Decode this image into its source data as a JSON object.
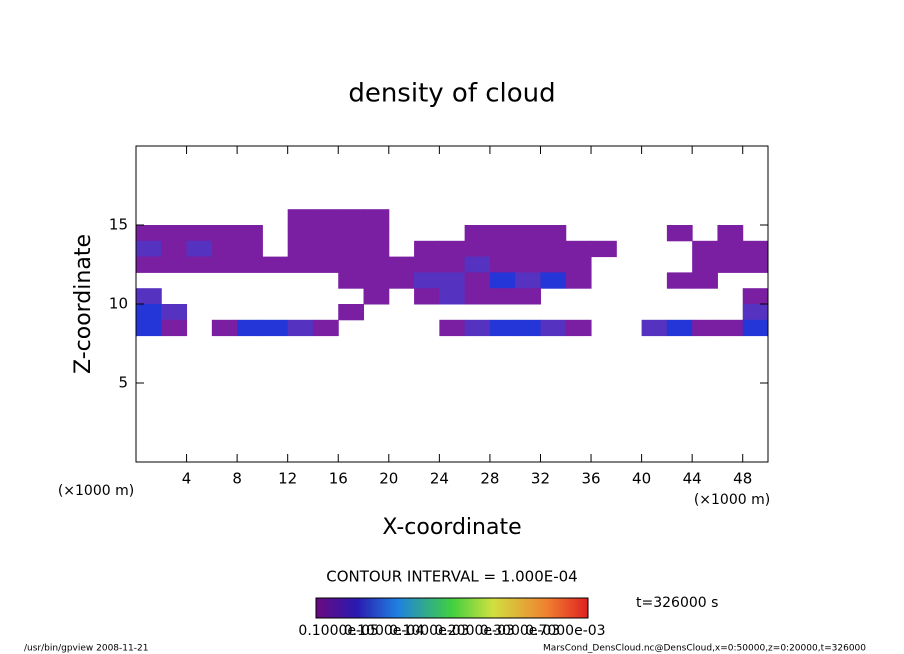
{
  "chart_data": {
    "type": "contour",
    "title": "density of cloud",
    "x_label": "X-coordinate",
    "y_label": "Z-coordinate",
    "x_unit": "(×1000 m)",
    "y_unit": "(×1000 m)",
    "xlim": [
      0,
      50
    ],
    "ylim": [
      0,
      20
    ],
    "xticks": [
      4,
      8,
      12,
      16,
      20,
      24,
      28,
      32,
      36,
      40,
      44,
      48
    ],
    "yticks": [
      5,
      10,
      15
    ],
    "x": [
      1,
      3,
      5,
      7,
      9,
      11,
      13,
      15,
      17,
      19,
      21,
      23,
      25,
      27,
      29,
      31,
      33,
      35,
      37,
      39,
      41,
      43,
      45,
      47,
      49
    ],
    "z": [
      15.5,
      14.5,
      13.5,
      12.5,
      11.5,
      10.5,
      9.5,
      8.5
    ],
    "values": [
      [
        null,
        null,
        null,
        null,
        null,
        null,
        0.0001,
        0.0001,
        0.0001,
        0.0001,
        null,
        null,
        null,
        null,
        null,
        null,
        null,
        null,
        null,
        null,
        null,
        null,
        null,
        null,
        null
      ],
      [
        0.0001,
        0.0001,
        0.0001,
        0.0001,
        0.0001,
        null,
        0.0001,
        0.0001,
        0.0001,
        0.0001,
        null,
        null,
        null,
        0.0001,
        0.0001,
        0.0001,
        0.0001,
        null,
        null,
        null,
        null,
        0.0001,
        null,
        0.0001,
        null
      ],
      [
        0.0002,
        0.0001,
        0.0002,
        0.0001,
        0.0001,
        null,
        0.0001,
        0.0001,
        0.0001,
        0.0001,
        null,
        0.0001,
        0.0001,
        0.0001,
        0.0001,
        0.0001,
        0.0001,
        0.0001,
        0.0001,
        null,
        null,
        null,
        0.0001,
        0.0001,
        0.0001
      ],
      [
        0.0001,
        0.0001,
        0.0001,
        0.0001,
        0.0001,
        0.0001,
        0.0001,
        0.0001,
        0.0001,
        0.0001,
        0.0001,
        0.0001,
        0.0001,
        0.0002,
        0.0001,
        0.0001,
        0.0001,
        0.0001,
        null,
        null,
        null,
        null,
        0.0001,
        0.0001,
        0.0001
      ],
      [
        null,
        null,
        null,
        null,
        null,
        null,
        null,
        null,
        0.0001,
        0.0001,
        0.0001,
        0.0002,
        0.0002,
        0.0001,
        0.0004,
        0.0002,
        0.0004,
        0.0001,
        null,
        null,
        null,
        0.0001,
        0.0001,
        null,
        null
      ],
      [
        0.0002,
        null,
        null,
        null,
        null,
        null,
        null,
        null,
        null,
        0.0001,
        null,
        0.0001,
        0.0002,
        0.0001,
        0.0001,
        0.0001,
        null,
        null,
        null,
        null,
        null,
        null,
        null,
        null,
        0.0001
      ],
      [
        0.0004,
        0.0002,
        null,
        null,
        null,
        null,
        null,
        null,
        0.0001,
        null,
        null,
        null,
        null,
        null,
        null,
        null,
        null,
        null,
        null,
        null,
        null,
        null,
        null,
        null,
        0.0002
      ],
      [
        0.0004,
        0.0001,
        null,
        0.0001,
        0.0004,
        0.0004,
        0.0002,
        0.0001,
        null,
        null,
        null,
        null,
        0.0001,
        0.0002,
        0.0004,
        0.0004,
        0.0002,
        0.0001,
        null,
        null,
        0.0002,
        0.0004,
        0.0001,
        0.0001,
        0.0004
      ]
    ],
    "level_colors": [
      "#7a1fa2",
      "#5533c0",
      "#2436d8"
    ],
    "contour_interval": "CONTOUR INTERVAL = 1.000E-04",
    "colorbar_labels": [
      "0.1000e-05",
      "0.1000e-04",
      "0.1000e-03",
      "0.2000e-03",
      "0.3000e-03",
      "0.7000e-03"
    ],
    "time": "t=326000 s",
    "footer_left": "/usr/bin/gpview   2008-11-21",
    "footer_right": "MarsCond_DensCloud.nc@DensCloud,x=0:50000,z=0:20000,t=326000"
  }
}
